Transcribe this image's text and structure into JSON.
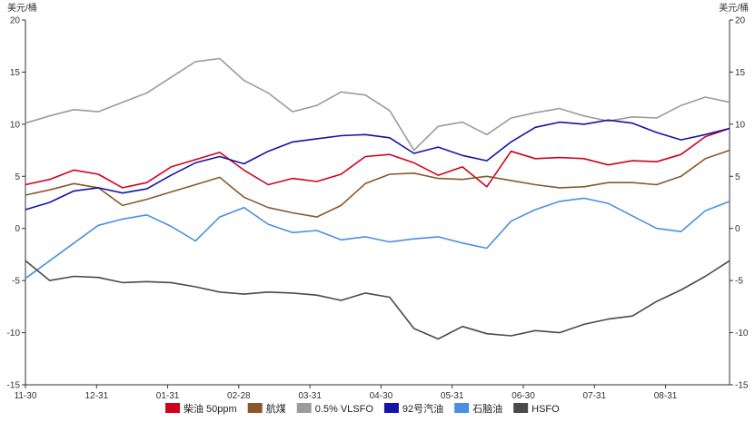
{
  "chart_data": {
    "type": "line",
    "y_unit_left": "美元/桶",
    "y_unit_right": "美元/桶",
    "ylim": [
      -15,
      20
    ],
    "yticks": [
      20,
      15,
      10,
      5,
      0,
      -5,
      -10,
      -15
    ],
    "x_ticks": [
      "11-30",
      "12-31",
      "01-31",
      "02-28",
      "03-31",
      "04-30",
      "05-31",
      "06-30",
      "07-31",
      "08-31"
    ],
    "legend_position": "bottom",
    "grid": false,
    "series": [
      {
        "name": "柴油 50ppm",
        "color": "#d0021b",
        "values": [
          4.2,
          4.7,
          5.6,
          5.2,
          3.9,
          4.4,
          5.9,
          6.6,
          7.3,
          5.6,
          4.2,
          4.8,
          4.5,
          5.2,
          6.9,
          7.1,
          6.3,
          5.1,
          5.9,
          4.0,
          7.4,
          6.7,
          6.8,
          6.7,
          6.1,
          6.5,
          6.4,
          7.1,
          8.8,
          9.6
        ]
      },
      {
        "name": "航煤",
        "color": "#8b572a",
        "values": [
          3.2,
          3.7,
          4.3,
          3.9,
          2.2,
          2.8,
          3.5,
          4.2,
          4.9,
          3.0,
          2.0,
          1.5,
          1.1,
          2.2,
          4.3,
          5.2,
          5.3,
          4.8,
          4.7,
          5.0,
          4.6,
          4.2,
          3.9,
          4.0,
          4.4,
          4.4,
          4.2,
          5.0,
          6.7,
          7.5
        ]
      },
      {
        "name": "0.5% VLSFO",
        "color": "#9b9b9b",
        "values": [
          10.1,
          10.8,
          11.4,
          11.2,
          12.1,
          13.0,
          14.5,
          16.0,
          16.3,
          14.2,
          13.0,
          11.2,
          11.8,
          13.1,
          12.8,
          11.3,
          7.5,
          9.8,
          10.2,
          9.0,
          10.6,
          11.1,
          11.5,
          10.8,
          10.3,
          10.7,
          10.6,
          11.8,
          12.6,
          12.1
        ]
      },
      {
        "name": "92号汽油",
        "color": "#1414a5",
        "values": [
          1.8,
          2.5,
          3.6,
          3.9,
          3.4,
          3.8,
          5.1,
          6.3,
          6.9,
          6.2,
          7.4,
          8.3,
          8.6,
          8.9,
          9.0,
          8.7,
          7.2,
          7.8,
          7.0,
          6.5,
          8.3,
          9.7,
          10.2,
          10.0,
          10.4,
          10.1,
          9.2,
          8.5,
          9.0,
          9.6
        ]
      },
      {
        "name": "石脑油",
        "color": "#4a90e2",
        "values": [
          -4.8,
          -3.1,
          -1.4,
          0.3,
          0.9,
          1.3,
          0.2,
          -1.2,
          1.1,
          2.0,
          0.4,
          -0.4,
          -0.2,
          -1.1,
          -0.8,
          -1.3,
          -1.0,
          -0.8,
          -1.4,
          -1.9,
          0.7,
          1.8,
          2.6,
          2.9,
          2.4,
          1.2,
          0.0,
          -0.3,
          1.7,
          2.6
        ]
      },
      {
        "name": "HSFO",
        "color": "#4a4a4a",
        "values": [
          -3.1,
          -5.0,
          -4.6,
          -4.7,
          -5.2,
          -5.1,
          -5.2,
          -5.6,
          -6.1,
          -6.3,
          -6.1,
          -6.2,
          -6.4,
          -6.9,
          -6.2,
          -6.6,
          -9.6,
          -10.6,
          -9.4,
          -10.1,
          -10.3,
          -9.8,
          -10.0,
          -9.2,
          -8.7,
          -8.4,
          -7.0,
          -5.9,
          -4.6,
          -3.1
        ]
      }
    ]
  }
}
